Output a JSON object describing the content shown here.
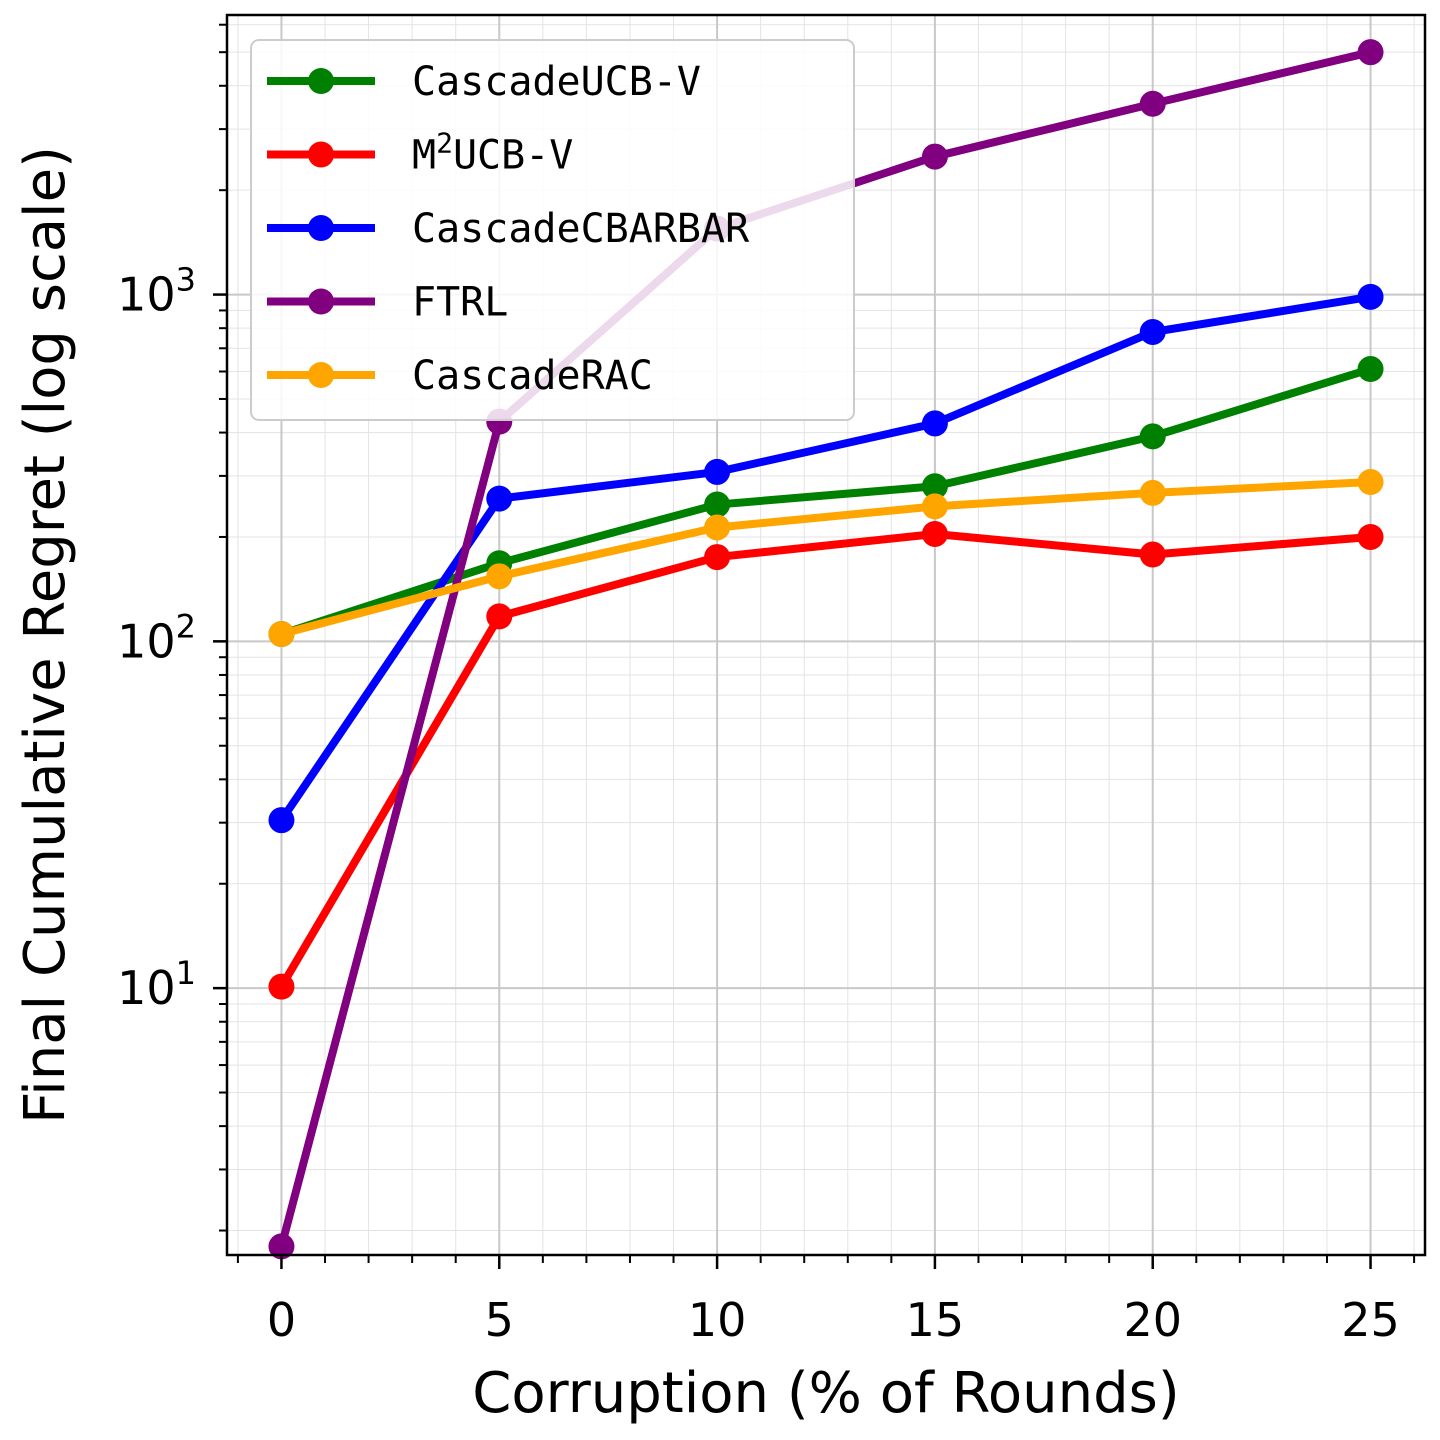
{
  "chart_data": {
    "type": "line",
    "x": [
      0,
      5,
      10,
      15,
      20,
      25
    ],
    "xlabel": "Corruption (% of Rounds)",
    "ylabel": "Final Cumulative Regret (log scale)",
    "xlim": [
      -1.25,
      26.25
    ],
    "ylim": [
      1.7,
      6400
    ],
    "yscale": "log",
    "grid": true,
    "legend_position": "upper-left",
    "x_ticks": [
      "0",
      "5",
      "10",
      "15",
      "20",
      "25"
    ],
    "y_ticks": [
      {
        "value": 10,
        "base": "10",
        "exp": "1"
      },
      {
        "value": 100,
        "base": "10",
        "exp": "2"
      },
      {
        "value": 1000,
        "base": "10",
        "exp": "3"
      }
    ],
    "series": [
      {
        "name": "CascadeUCB-V",
        "name_base": "CascadeUCB-V",
        "name_sup": "",
        "name_tail": "",
        "color": "#008000",
        "values": [
          105,
          168,
          248,
          280,
          390,
          610
        ]
      },
      {
        "name": "M2UCB-V",
        "name_base": "M",
        "name_sup": "2",
        "name_tail": "UCB-V",
        "color": "#ff0000",
        "values": [
          10.1,
          118,
          175,
          204,
          178,
          200
        ]
      },
      {
        "name": "CascadeCBARBAR",
        "name_base": "CascadeCBARBAR",
        "name_sup": "",
        "name_tail": "",
        "color": "#0000ff",
        "values": [
          30.5,
          258,
          308,
          425,
          780,
          985
        ]
      },
      {
        "name": "FTRL",
        "name_base": "FTRL",
        "name_sup": "",
        "name_tail": "",
        "color": "#800080",
        "values": [
          1.8,
          430,
          1550,
          2500,
          3550,
          5000
        ]
      },
      {
        "name": "CascadeRAC",
        "name_base": "CascadeRAC",
        "name_sup": "",
        "name_tail": "",
        "color": "#ffa500",
        "values": [
          105,
          154,
          213,
          245,
          268,
          288
        ]
      }
    ]
  }
}
